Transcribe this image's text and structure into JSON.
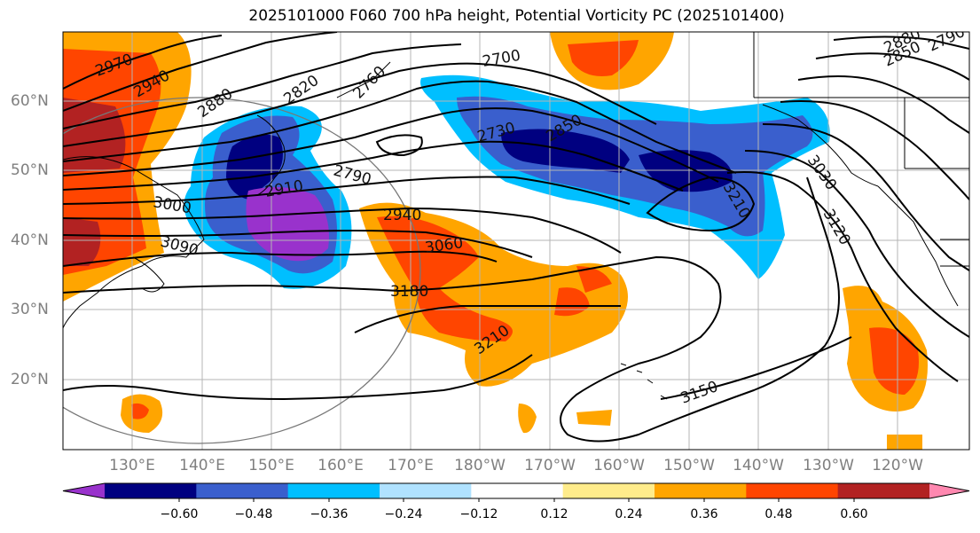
{
  "title": "2025101000 F060 700 hPa height, Potential Vorticity PC (2025101400)",
  "map": {
    "lat_labels": [
      "60°N",
      "50°N",
      "40°N",
      "30°N",
      "20°N"
    ],
    "lon_labels": [
      "130°E",
      "140°E",
      "150°E",
      "160°E",
      "170°E",
      "180°W",
      "170°W",
      "160°W",
      "150°W",
      "140°W",
      "130°W",
      "120°W"
    ]
  },
  "contour_labels": [
    {
      "text": "2970"
    },
    {
      "text": "2940"
    },
    {
      "text": "2880"
    },
    {
      "text": "2820"
    },
    {
      "text": "2760"
    },
    {
      "text": "2700"
    },
    {
      "text": "2730"
    },
    {
      "text": "2850"
    },
    {
      "text": "2910"
    },
    {
      "text": "2790"
    },
    {
      "text": "3000"
    },
    {
      "text": "3090"
    },
    {
      "text": "2940"
    },
    {
      "text": "3060"
    },
    {
      "text": "3180"
    },
    {
      "text": "3210"
    },
    {
      "text": "3150"
    },
    {
      "text": "3030"
    },
    {
      "text": "3120"
    },
    {
      "text": "3210"
    },
    {
      "text": "2850"
    },
    {
      "text": "2880"
    },
    {
      "text": "2790"
    }
  ],
  "colorbar": {
    "colors": [
      "#9932cc",
      "#000080",
      "#3a5fcd",
      "#00bfff",
      "#b0e2ff",
      "#ffffff",
      "#ffec8b",
      "#ffa500",
      "#ff4500",
      "#b22222",
      "#ff88b0"
    ],
    "ticks": [
      "−0.60",
      "−0.48",
      "−0.36",
      "−0.24",
      "−0.12",
      "0.12",
      "0.24",
      "0.36",
      "0.48",
      "0.60"
    ]
  },
  "legend_values": [
    -0.6,
    -0.48,
    -0.36,
    -0.24,
    -0.12,
    0.12,
    0.24,
    0.36,
    0.48,
    0.6
  ]
}
